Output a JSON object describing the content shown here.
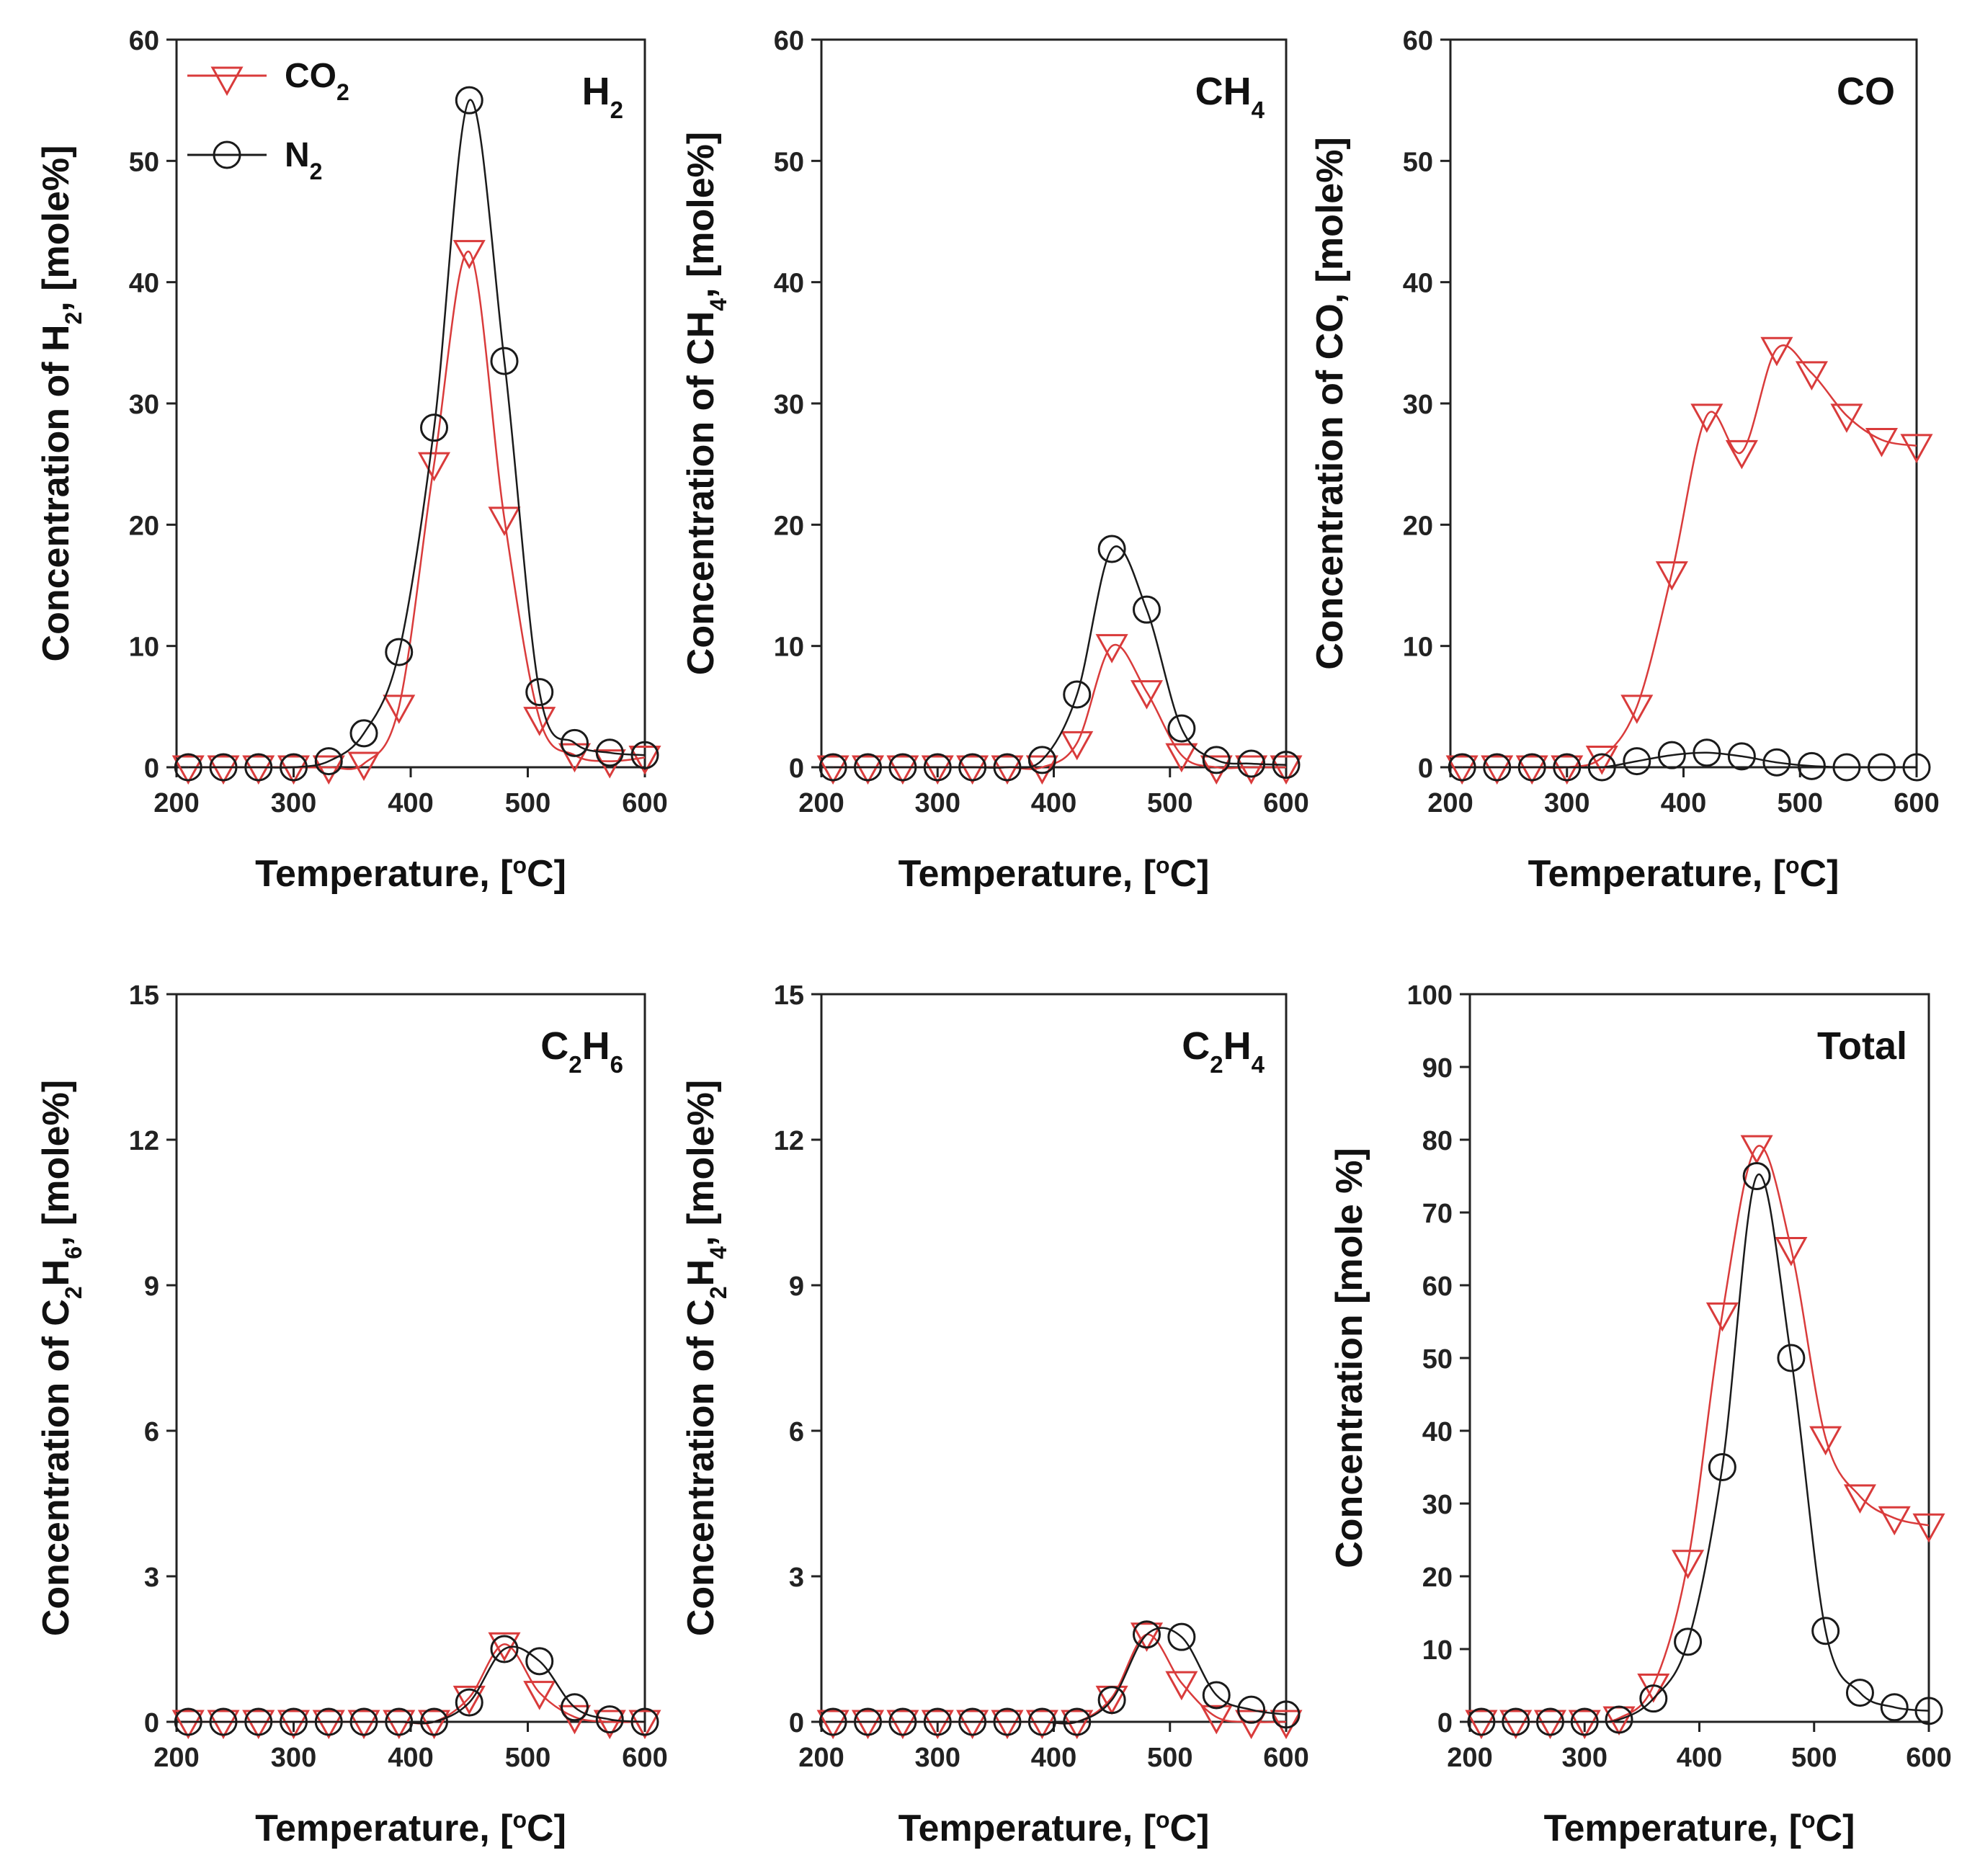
{
  "colors": {
    "co2": "#d93b3b",
    "n2": "#1a1a1a",
    "frame": "#222222",
    "background": "#ffffff"
  },
  "legend": {
    "entries": [
      {
        "series": "CO2",
        "label": "CO",
        "sub": "2",
        "marker": "triangle-down",
        "color": "#d93b3b"
      },
      {
        "series": "N2",
        "label": "N",
        "sub": "2",
        "marker": "circle",
        "color": "#1a1a1a"
      }
    ]
  },
  "chart_data": [
    {
      "type": "line",
      "tag": [
        {
          "t": "H"
        },
        {
          "t": "2",
          "sub": true
        }
      ],
      "ylabel": [
        {
          "t": "Concentration of H"
        },
        {
          "t": "2",
          "sub": true
        },
        {
          "t": ", [mole%]"
        }
      ],
      "xlabel": [
        {
          "t": "Temperature, ["
        },
        {
          "t": "o",
          "sup": true
        },
        {
          "t": "C]"
        }
      ],
      "xlim": [
        200,
        600
      ],
      "xticks": [
        200,
        300,
        400,
        500,
        600
      ],
      "ylim": [
        0,
        60
      ],
      "yticks": [
        0,
        10,
        20,
        30,
        40,
        50,
        60
      ],
      "x": [
        210,
        240,
        270,
        300,
        330,
        360,
        390,
        420,
        450,
        480,
        510,
        540,
        570,
        600
      ],
      "series": [
        {
          "name": "CO2",
          "values": [
            0,
            0,
            0,
            0,
            0,
            0.3,
            5,
            25,
            42.5,
            20.5,
            4,
            1,
            0.5,
            0.8
          ]
        },
        {
          "name": "N2",
          "values": [
            0,
            0,
            0,
            0,
            0.5,
            2.8,
            9.5,
            28,
            55,
            33.5,
            6.2,
            2,
            1.2,
            1
          ]
        }
      ]
    },
    {
      "type": "line",
      "tag": [
        {
          "t": "CH"
        },
        {
          "t": "4",
          "sub": true
        }
      ],
      "ylabel": [
        {
          "t": "Concentration of CH"
        },
        {
          "t": "4",
          "sub": true
        },
        {
          "t": ", [mole%]"
        }
      ],
      "xlabel": [
        {
          "t": "Temperature, ["
        },
        {
          "t": "o",
          "sup": true
        },
        {
          "t": "C]"
        }
      ],
      "xlim": [
        200,
        600
      ],
      "xticks": [
        200,
        300,
        400,
        500,
        600
      ],
      "ylim": [
        0,
        60
      ],
      "yticks": [
        0,
        10,
        20,
        30,
        40,
        50,
        60
      ],
      "x": [
        210,
        240,
        270,
        300,
        330,
        360,
        390,
        420,
        450,
        480,
        510,
        540,
        570,
        600
      ],
      "series": [
        {
          "name": "CO2",
          "values": [
            0,
            0,
            0,
            0,
            0,
            0,
            0,
            2,
            10,
            6.2,
            1,
            0,
            0,
            0
          ]
        },
        {
          "name": "N2",
          "values": [
            0,
            0,
            0,
            0,
            0,
            0,
            0.6,
            6,
            18,
            13,
            3.2,
            0.6,
            0.3,
            0.2
          ]
        }
      ]
    },
    {
      "type": "line",
      "tag": [
        {
          "t": "CO"
        }
      ],
      "ylabel": [
        {
          "t": "Concentration of CO, [mole%]"
        }
      ],
      "xlabel": [
        {
          "t": "Temperature, ["
        },
        {
          "t": "o",
          "sup": true
        },
        {
          "t": "C]"
        }
      ],
      "xlim": [
        200,
        600
      ],
      "xticks": [
        200,
        300,
        400,
        500,
        600
      ],
      "ylim": [
        0,
        60
      ],
      "yticks": [
        0,
        10,
        20,
        30,
        40,
        50,
        60
      ],
      "x": [
        210,
        240,
        270,
        300,
        330,
        360,
        390,
        420,
        450,
        480,
        510,
        540,
        570,
        600
      ],
      "series": [
        {
          "name": "CO2",
          "values": [
            0,
            0,
            0,
            0,
            0.8,
            5,
            16,
            29,
            26,
            34.5,
            32.5,
            29,
            27,
            26.5
          ]
        },
        {
          "name": "N2",
          "values": [
            0,
            0,
            0,
            0,
            0,
            0.5,
            1,
            1.2,
            0.9,
            0.4,
            0.1,
            0,
            0,
            0
          ]
        }
      ]
    },
    {
      "type": "line",
      "tag": [
        {
          "t": "C"
        },
        {
          "t": "2",
          "sub": true
        },
        {
          "t": "H"
        },
        {
          "t": "6",
          "sub": true
        }
      ],
      "ylabel": [
        {
          "t": "Concentration of C"
        },
        {
          "t": "2",
          "sub": true
        },
        {
          "t": "H"
        },
        {
          "t": "6",
          "sub": true
        },
        {
          "t": ", [mole%]"
        }
      ],
      "xlabel": [
        {
          "t": "Temperature, ["
        },
        {
          "t": "o",
          "sup": true
        },
        {
          "t": "C]"
        }
      ],
      "xlim": [
        200,
        600
      ],
      "xticks": [
        200,
        300,
        400,
        500,
        600
      ],
      "ylim": [
        0,
        15
      ],
      "yticks": [
        0,
        3,
        6,
        9,
        12,
        15
      ],
      "x": [
        210,
        240,
        270,
        300,
        330,
        360,
        390,
        420,
        450,
        480,
        510,
        540,
        570,
        600
      ],
      "series": [
        {
          "name": "CO2",
          "values": [
            0,
            0,
            0,
            0,
            0,
            0,
            0,
            0,
            0.5,
            1.6,
            0.6,
            0.1,
            0,
            0
          ]
        },
        {
          "name": "N2",
          "values": [
            0,
            0,
            0,
            0,
            0,
            0,
            0,
            0,
            0.4,
            1.5,
            1.25,
            0.3,
            0.05,
            0
          ]
        }
      ]
    },
    {
      "type": "line",
      "tag": [
        {
          "t": "C"
        },
        {
          "t": "2",
          "sub": true
        },
        {
          "t": "H"
        },
        {
          "t": "4",
          "sub": true
        }
      ],
      "ylabel": [
        {
          "t": "Concentration of C"
        },
        {
          "t": "2",
          "sub": true
        },
        {
          "t": "H"
        },
        {
          "t": "4",
          "sub": true
        },
        {
          "t": ", [mole%]"
        }
      ],
      "xlabel": [
        {
          "t": "Temperature, ["
        },
        {
          "t": "o",
          "sup": true
        },
        {
          "t": "C]"
        }
      ],
      "xlim": [
        200,
        600
      ],
      "xticks": [
        200,
        300,
        400,
        500,
        600
      ],
      "ylim": [
        0,
        15
      ],
      "yticks": [
        0,
        3,
        6,
        9,
        12,
        15
      ],
      "x": [
        210,
        240,
        270,
        300,
        330,
        360,
        390,
        420,
        450,
        480,
        510,
        540,
        570,
        600
      ],
      "series": [
        {
          "name": "CO2",
          "values": [
            0,
            0,
            0,
            0,
            0,
            0,
            0,
            0,
            0.5,
            1.8,
            0.8,
            0.1,
            0,
            0
          ]
        },
        {
          "name": "N2",
          "values": [
            0,
            0,
            0,
            0,
            0,
            0,
            0,
            0,
            0.45,
            1.8,
            1.75,
            0.55,
            0.25,
            0.15
          ]
        }
      ]
    },
    {
      "type": "line",
      "tag": [
        {
          "t": "Total"
        }
      ],
      "ylabel": [
        {
          "t": "Concentration [mole %]"
        }
      ],
      "xlabel": [
        {
          "t": "Temperature, ["
        },
        {
          "t": "o",
          "sup": true
        },
        {
          "t": "C]"
        }
      ],
      "xlim": [
        200,
        600
      ],
      "xticks": [
        200,
        300,
        400,
        500,
        600
      ],
      "ylim": [
        0,
        100
      ],
      "yticks": [
        0,
        10,
        20,
        30,
        40,
        50,
        60,
        70,
        80,
        90,
        100
      ],
      "x": [
        210,
        240,
        270,
        300,
        330,
        360,
        390,
        420,
        450,
        480,
        510,
        540,
        570,
        600
      ],
      "series": [
        {
          "name": "CO2",
          "values": [
            0,
            0,
            0,
            0,
            0.5,
            5,
            22,
            56,
            79,
            65,
            39,
            31,
            28,
            27
          ]
        },
        {
          "name": "N2",
          "values": [
            0,
            0,
            0,
            0,
            0.3,
            3.2,
            11,
            35,
            75,
            50,
            12.5,
            4,
            2,
            1.5
          ]
        }
      ]
    }
  ]
}
